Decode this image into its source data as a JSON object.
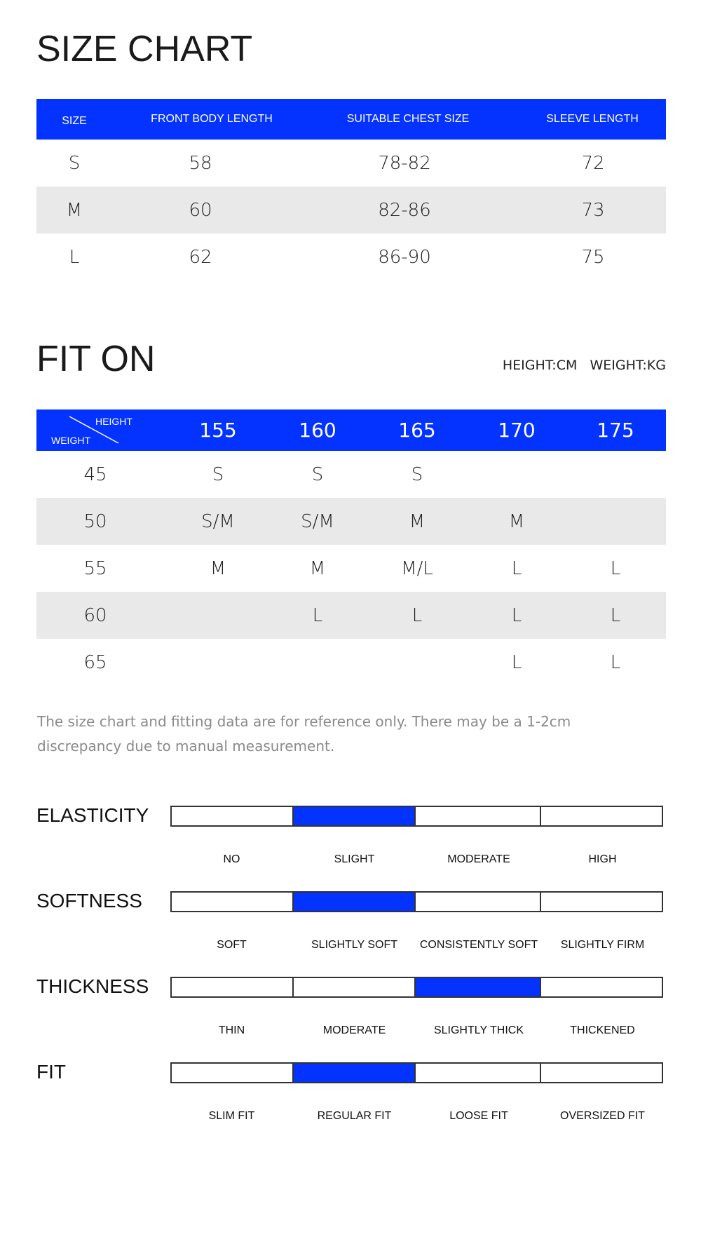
{
  "accent_color": "#0433ff",
  "size_chart": {
    "title": "SIZE CHART",
    "headers": [
      "SIZE",
      "FRONT BODY LENGTH",
      "SUITABLE CHEST SIZE",
      "SLEEVE LENGTH"
    ],
    "rows": [
      [
        "S",
        "58",
        "78-82",
        "72"
      ],
      [
        "M",
        "60",
        "82-86",
        "73"
      ],
      [
        "L",
        "62",
        "86-90",
        "75"
      ]
    ]
  },
  "fit_on": {
    "title": "FIT ON",
    "units": "HEIGHT:CM   WEIGHT:KG",
    "corner_height": "HEIGHT",
    "corner_weight": "WEIGHT",
    "heights": [
      "155",
      "160",
      "165",
      "170",
      "175"
    ],
    "rows": [
      {
        "weight": "45",
        "sizes": [
          "S",
          "S",
          "S",
          "",
          ""
        ]
      },
      {
        "weight": "50",
        "sizes": [
          "S/M",
          "S/M",
          "M",
          "M",
          ""
        ]
      },
      {
        "weight": "55",
        "sizes": [
          "M",
          "M",
          "M/L",
          "L",
          "L"
        ]
      },
      {
        "weight": "60",
        "sizes": [
          "",
          "L",
          "L",
          "L",
          "L"
        ]
      },
      {
        "weight": "65",
        "sizes": [
          "",
          "",
          "",
          "L",
          "L"
        ]
      }
    ],
    "note": "The size chart and fitting data are for reference only. There may be a 1-2cm discrepancy due to manual measurement."
  },
  "attributes": [
    {
      "name": "ELASTICITY",
      "options": [
        "NO",
        "SLIGHT",
        "MODERATE",
        "HIGH"
      ],
      "selected": 1
    },
    {
      "name": "SOFTNESS",
      "options": [
        "SOFT",
        "SLIGHTLY SOFT",
        "CONSISTENTLY SOFT",
        "SLIGHTLY FIRM"
      ],
      "selected": 1
    },
    {
      "name": "THICKNESS",
      "options": [
        "THIN",
        "MODERATE",
        "SLIGHTLY THICK",
        "THICKENED"
      ],
      "selected": 2
    },
    {
      "name": "FIT",
      "options": [
        "SLIM FIT",
        "REGULAR FIT",
        "LOOSE FIT",
        "OVERSIZED FIT"
      ],
      "selected": 1
    }
  ]
}
